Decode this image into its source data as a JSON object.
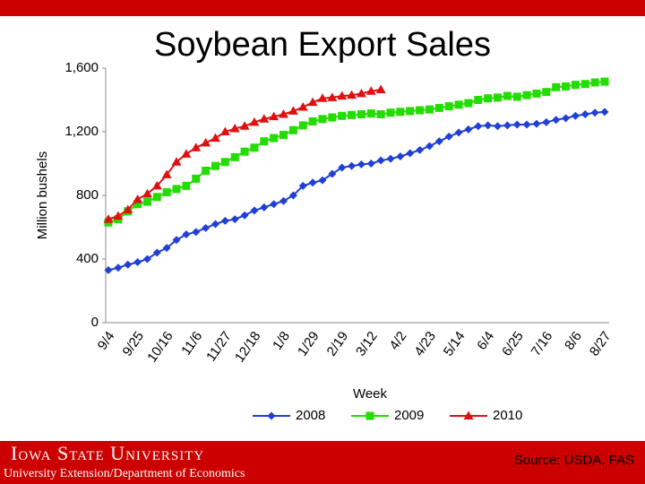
{
  "chart_data": {
    "type": "line",
    "title": "Soybean Export Sales",
    "y_label": "Million bushels",
    "x_label": "Week",
    "categories": [
      "9/4",
      null,
      null,
      "9/25",
      null,
      null,
      "10/16",
      null,
      null,
      "11/6",
      null,
      null,
      "11/27",
      null,
      null,
      "12/18",
      null,
      null,
      "1/8",
      null,
      null,
      "1/29",
      null,
      null,
      "2/19",
      null,
      null,
      "3/12",
      null,
      null,
      "4/2",
      null,
      null,
      "4/23",
      null,
      null,
      "5/14",
      null,
      null,
      "6/4",
      null,
      null,
      "6/25",
      null,
      null,
      "7/16",
      null,
      null,
      "8/6",
      null,
      null,
      "8/27"
    ],
    "series": [
      {
        "name": "2008",
        "color": "#1f3fd6",
        "marker": "diamond",
        "values": [
          330,
          345,
          365,
          380,
          400,
          440,
          470,
          520,
          555,
          570,
          595,
          620,
          640,
          650,
          675,
          705,
          725,
          745,
          765,
          800,
          860,
          880,
          895,
          935,
          975,
          985,
          995,
          1000,
          1020,
          1030,
          1045,
          1065,
          1085,
          1110,
          1140,
          1170,
          1195,
          1215,
          1235,
          1240,
          1235,
          1240,
          1245,
          1245,
          1250,
          1260,
          1275,
          1285,
          1300,
          1310,
          1320,
          1325
        ]
      },
      {
        "name": "2009",
        "color": "#22dd00",
        "marker": "square",
        "values": [
          630,
          650,
          700,
          745,
          760,
          790,
          820,
          840,
          860,
          905,
          955,
          985,
          1010,
          1040,
          1075,
          1100,
          1140,
          1160,
          1180,
          1210,
          1240,
          1265,
          1280,
          1290,
          1300,
          1305,
          1310,
          1315,
          1310,
          1320,
          1325,
          1330,
          1335,
          1340,
          1350,
          1360,
          1370,
          1380,
          1400,
          1410,
          1415,
          1425,
          1420,
          1430,
          1440,
          1450,
          1480,
          1485,
          1495,
          1500,
          1510,
          1515
        ]
      },
      {
        "name": "2010",
        "color": "#e01010",
        "marker": "triangle",
        "values": [
          650,
          670,
          710,
          775,
          810,
          860,
          930,
          1010,
          1060,
          1100,
          1130,
          1160,
          1200,
          1220,
          1235,
          1260,
          1280,
          1295,
          1310,
          1330,
          1355,
          1385,
          1410,
          1415,
          1425,
          1430,
          1440,
          1455,
          1465,
          null,
          null,
          null,
          null,
          null,
          null,
          null,
          null,
          null,
          null,
          null,
          null,
          null,
          null,
          null,
          null,
          null,
          null,
          null,
          null,
          null,
          null,
          null
        ]
      }
    ],
    "ylim": [
      0,
      1600
    ],
    "yticks": [
      0,
      400,
      800,
      {
        "value": 1200,
        "label": "1,200"
      },
      {
        "value": 1600,
        "label": "1,600"
      }
    ],
    "legend": "bottom",
    "grid": false
  },
  "footer": {
    "university": "Iowa State University",
    "department": "University Extension/Department of Economics",
    "source": "Source: USDA, FAS"
  }
}
